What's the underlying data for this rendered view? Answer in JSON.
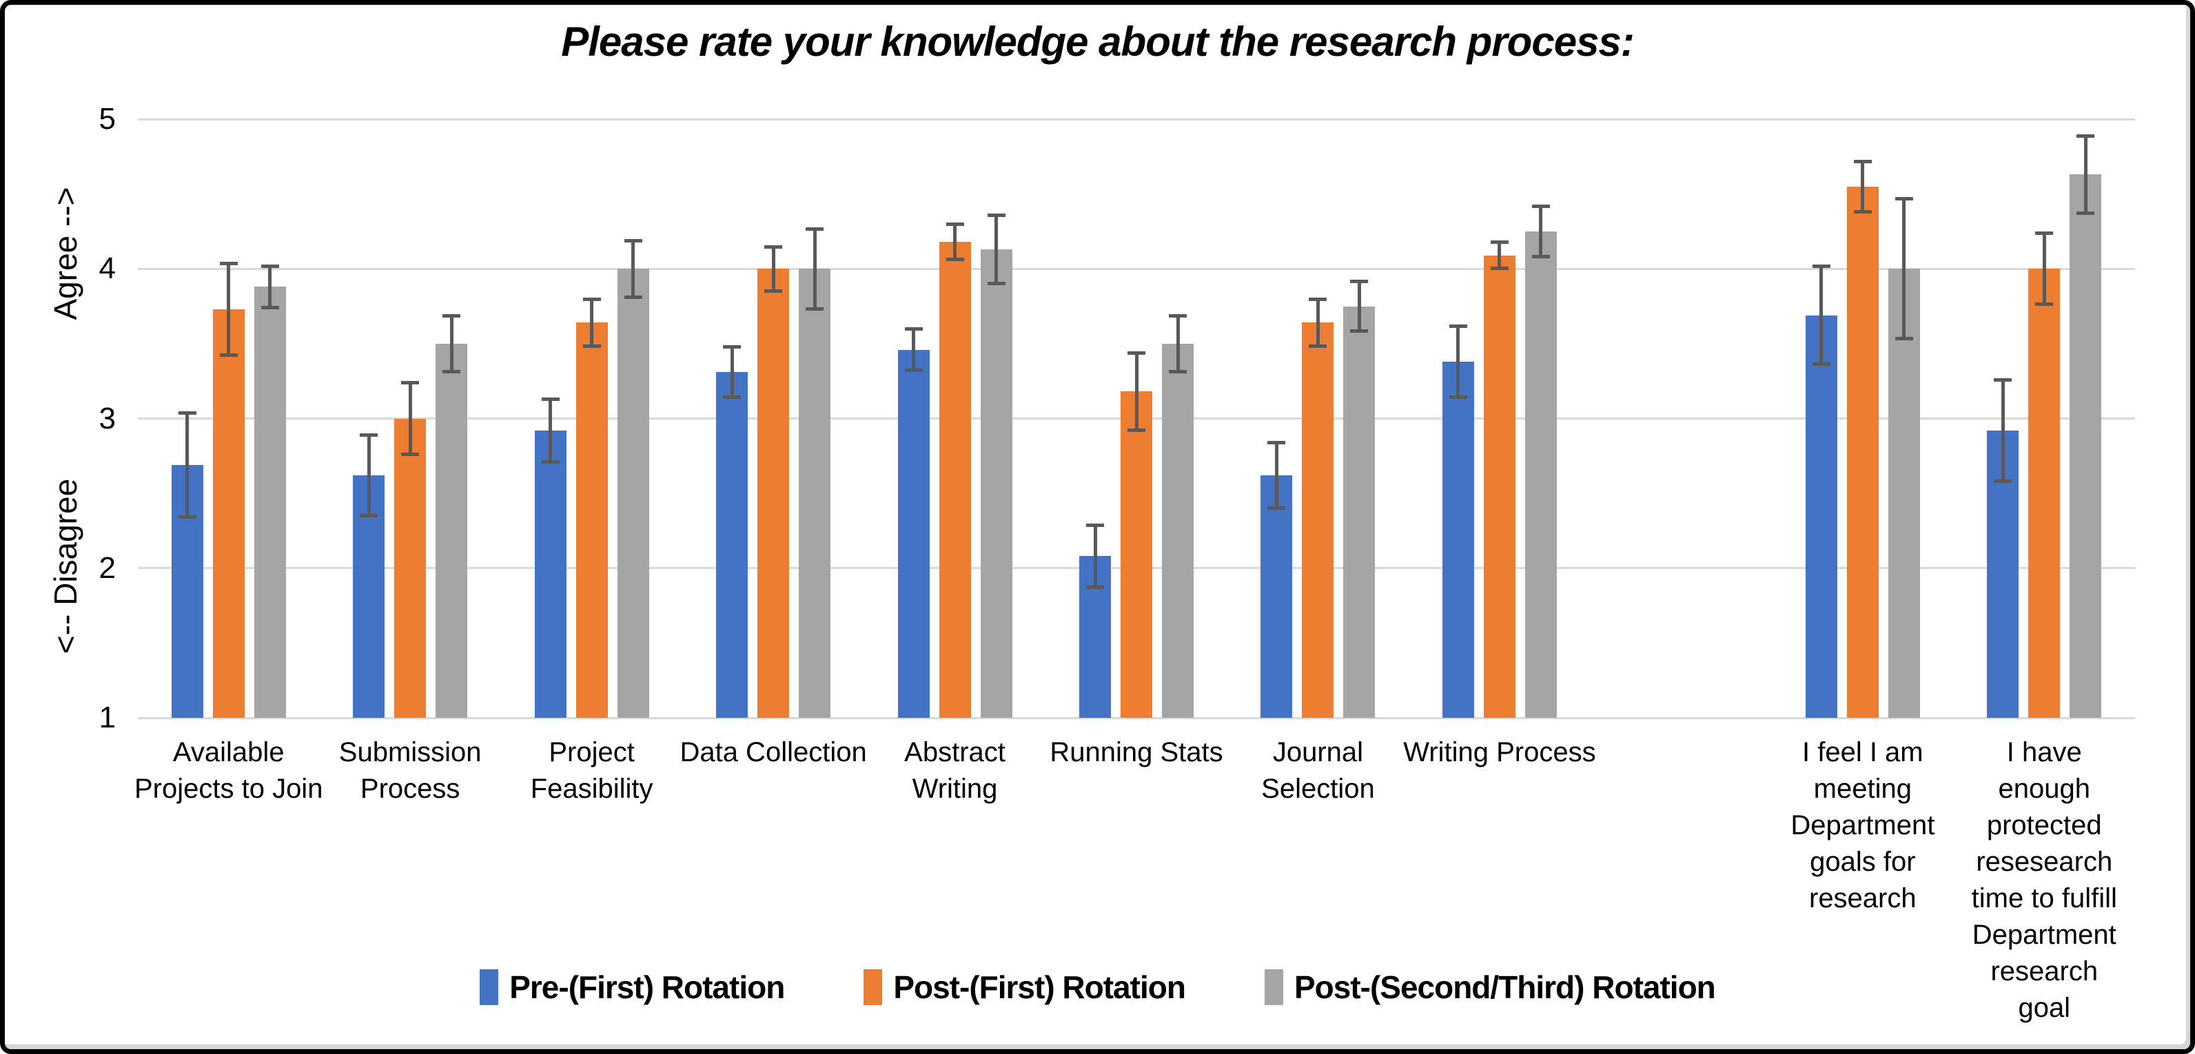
{
  "frame": {
    "border_color": "#000000",
    "background": "#ffffff"
  },
  "chart_data": {
    "type": "bar",
    "title": "Please rate your knowledge about the research process:",
    "y_axis": {
      "min": 1,
      "max": 5,
      "ticks": [
        "5",
        "4",
        "3",
        "2",
        "1"
      ],
      "upper_label": "Agree -->",
      "lower_label": "<-- Disagree",
      "grid": true
    },
    "categories": [
      [
        "Available",
        "Projects to Join"
      ],
      [
        "Submission",
        "Process"
      ],
      [
        "Project",
        "Feasibility"
      ],
      [
        "Data Collection"
      ],
      [
        "Abstract",
        "Writing"
      ],
      [
        "Running Stats"
      ],
      [
        "Journal",
        "Selection"
      ],
      [
        "Writing Process"
      ],
      [],
      [
        "I feel I am",
        "meeting",
        "Department",
        "goals for",
        "research"
      ],
      [
        "I have enough",
        "protected",
        "resesearch",
        "time to fulfill",
        "Department",
        "research goal"
      ]
    ],
    "series": [
      {
        "name": "Pre-(First) Rotation",
        "color": "#4472C4",
        "values": [
          2.69,
          2.62,
          2.92,
          3.31,
          3.46,
          2.08,
          2.62,
          3.38,
          null,
          3.69,
          2.92
        ],
        "errors": [
          0.35,
          0.27,
          0.21,
          0.17,
          0.14,
          0.21,
          0.22,
          0.24,
          null,
          0.33,
          0.34
        ]
      },
      {
        "name": "Post-(First) Rotation",
        "color": "#ED7D31",
        "values": [
          3.73,
          3.0,
          3.64,
          4.0,
          4.18,
          3.18,
          3.64,
          4.09,
          null,
          4.55,
          4.0
        ],
        "errors": [
          0.31,
          0.24,
          0.16,
          0.15,
          0.12,
          0.26,
          0.16,
          0.09,
          null,
          0.17,
          0.24
        ]
      },
      {
        "name": "Post-(Second/Third) Rotation",
        "color": "#A5A5A5",
        "values": [
          3.88,
          3.5,
          4.0,
          4.0,
          4.13,
          3.5,
          3.75,
          4.25,
          null,
          4.0,
          4.63
        ],
        "errors": [
          0.14,
          0.19,
          0.19,
          0.27,
          0.23,
          0.19,
          0.17,
          0.17,
          null,
          0.47,
          0.26
        ]
      }
    ],
    "error_bars": true,
    "legend_position": "bottom",
    "colors": {
      "grid": "#D9D9D9",
      "error": "#595959",
      "text": "#000000"
    }
  }
}
